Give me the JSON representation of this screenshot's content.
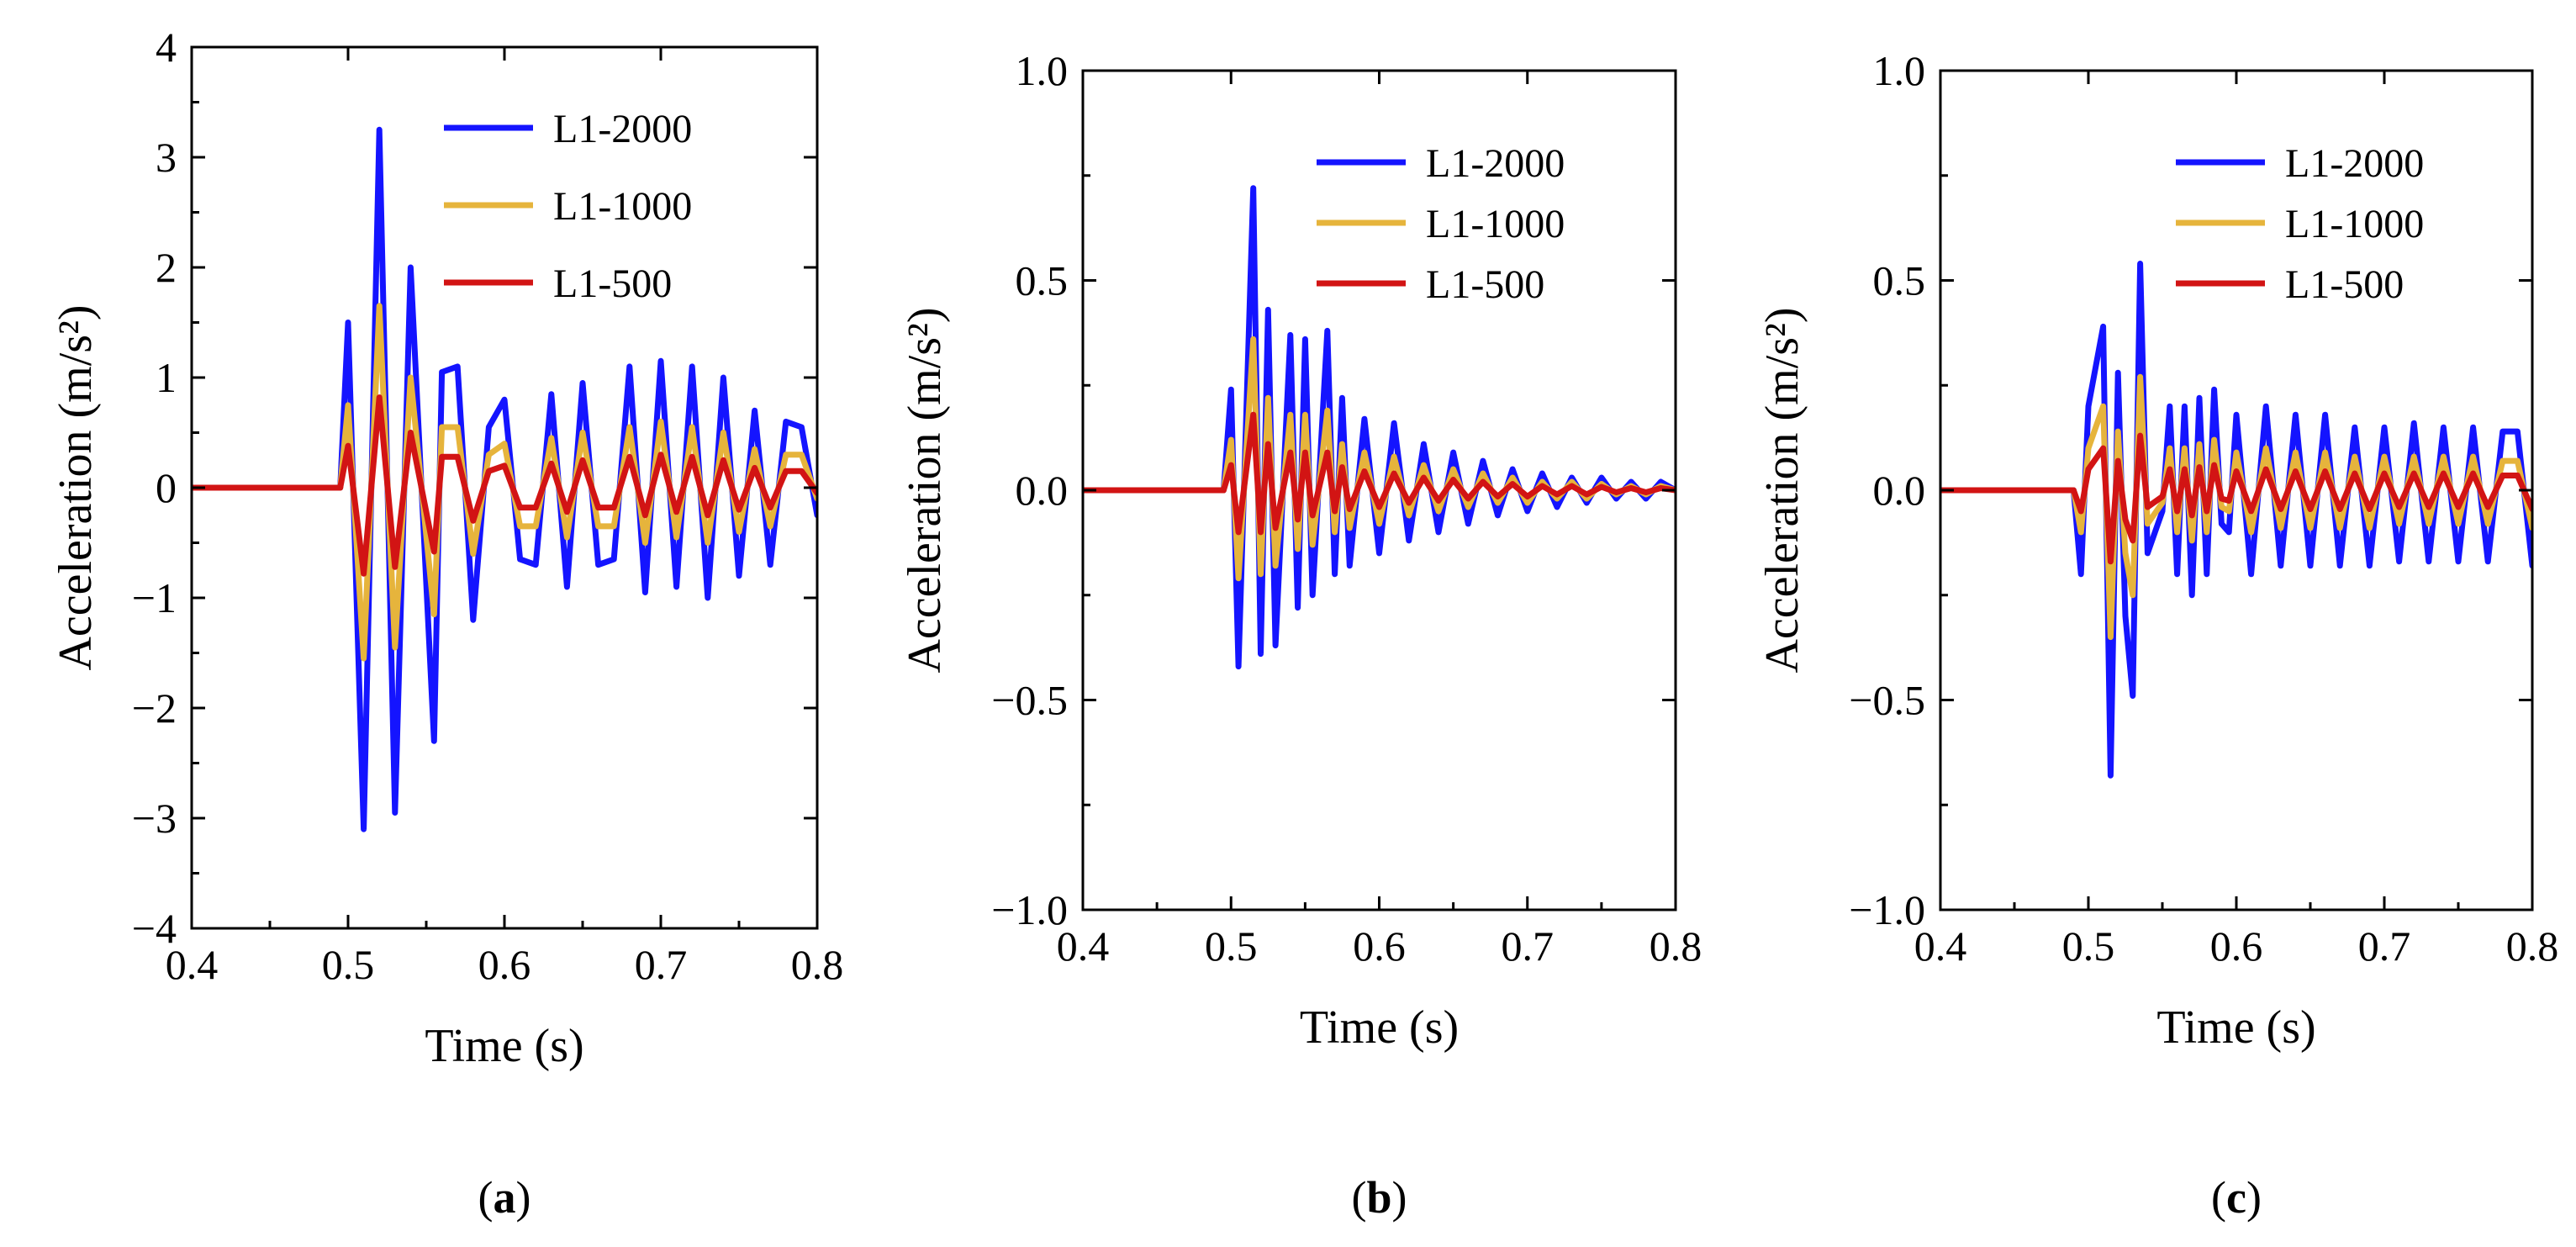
{
  "colors": {
    "L1-2000": "#1414ff",
    "L1-1000": "#e6b43c",
    "L1-500": "#d21414"
  },
  "chart_data": [
    {
      "type": "line",
      "panel_label": "a",
      "xlabel": "Time (s)",
      "ylabel": "Acceleration (m/s²)",
      "xlim": [
        0.4,
        0.8
      ],
      "ylim": [
        -4,
        4
      ],
      "xticks": [
        0.4,
        0.5,
        0.6,
        0.7,
        0.8
      ],
      "xtick_labels": [
        "0.4",
        "0.5",
        "0.6",
        "0.7",
        "0.8"
      ],
      "yticks": [
        -4,
        -3,
        -2,
        -1,
        0,
        1,
        2,
        3,
        4
      ],
      "ytick_labels": [
        "−4",
        "−3",
        "−2",
        "−1",
        "0",
        "1",
        "2",
        "3",
        "4"
      ],
      "legend": [
        "L1-2000",
        "L1-1000",
        "L1-500"
      ],
      "legend_position": "top-right",
      "series": [
        {
          "name": "L1-2000",
          "x": [
            0.4,
            0.495,
            0.5,
            0.51,
            0.52,
            0.53,
            0.54,
            0.555,
            0.56,
            0.57,
            0.58,
            0.59,
            0.6,
            0.61,
            0.62,
            0.63,
            0.64,
            0.65,
            0.66,
            0.67,
            0.68,
            0.69,
            0.7,
            0.71,
            0.72,
            0.73,
            0.74,
            0.75,
            0.76,
            0.77,
            0.78,
            0.79,
            0.8
          ],
          "y": [
            0,
            0,
            1.5,
            -3.1,
            3.25,
            -2.95,
            2.0,
            -2.3,
            1.05,
            1.1,
            -1.2,
            0.55,
            0.8,
            -0.65,
            -0.7,
            0.85,
            -0.9,
            0.95,
            -0.7,
            -0.65,
            1.1,
            -0.95,
            1.15,
            -0.9,
            1.1,
            -1.0,
            1.0,
            -0.8,
            0.7,
            -0.7,
            0.6,
            0.55,
            -0.25
          ]
        },
        {
          "name": "L1-1000",
          "x": [
            0.4,
            0.495,
            0.5,
            0.51,
            0.52,
            0.53,
            0.54,
            0.555,
            0.56,
            0.57,
            0.58,
            0.59,
            0.6,
            0.61,
            0.62,
            0.63,
            0.64,
            0.65,
            0.66,
            0.67,
            0.68,
            0.69,
            0.7,
            0.71,
            0.72,
            0.73,
            0.74,
            0.75,
            0.76,
            0.77,
            0.78,
            0.79,
            0.8
          ],
          "y": [
            0,
            0,
            0.75,
            -1.55,
            1.65,
            -1.45,
            1.0,
            -1.15,
            0.55,
            0.55,
            -0.6,
            0.3,
            0.4,
            -0.35,
            -0.35,
            0.45,
            -0.45,
            0.5,
            -0.35,
            -0.35,
            0.55,
            -0.5,
            0.6,
            -0.45,
            0.55,
            -0.5,
            0.5,
            -0.4,
            0.35,
            -0.35,
            0.3,
            0.3,
            -0.1
          ]
        },
        {
          "name": "L1-500",
          "x": [
            0.4,
            0.495,
            0.5,
            0.51,
            0.52,
            0.53,
            0.54,
            0.555,
            0.56,
            0.57,
            0.58,
            0.59,
            0.6,
            0.61,
            0.62,
            0.63,
            0.64,
            0.65,
            0.66,
            0.67,
            0.68,
            0.69,
            0.7,
            0.71,
            0.72,
            0.73,
            0.74,
            0.75,
            0.76,
            0.77,
            0.78,
            0.79,
            0.8
          ],
          "y": [
            0,
            0,
            0.38,
            -0.78,
            0.82,
            -0.72,
            0.5,
            -0.58,
            0.28,
            0.28,
            -0.3,
            0.15,
            0.2,
            -0.18,
            -0.18,
            0.22,
            -0.22,
            0.25,
            -0.18,
            -0.18,
            0.28,
            -0.25,
            0.3,
            -0.22,
            0.28,
            -0.25,
            0.25,
            -0.2,
            0.18,
            -0.18,
            0.15,
            0.15,
            -0.05
          ]
        }
      ]
    },
    {
      "type": "line",
      "panel_label": "b",
      "xlabel": "Time (s)",
      "ylabel": "Acceleration (m/s²)",
      "xlim": [
        0.4,
        0.8
      ],
      "ylim": [
        -1.0,
        1.0
      ],
      "xticks": [
        0.4,
        0.5,
        0.6,
        0.7,
        0.8
      ],
      "xtick_labels": [
        "0.4",
        "0.5",
        "0.6",
        "0.7",
        "0.8"
      ],
      "yticks": [
        -1.0,
        -0.5,
        0.0,
        0.5,
        1.0
      ],
      "ytick_labels": [
        "−1.0",
        "−0.5",
        "0.0",
        "0.5",
        "1.0"
      ],
      "legend": [
        "L1-2000",
        "L1-1000",
        "L1-500"
      ],
      "legend_position": "top-right",
      "series": [
        {
          "name": "L1-2000",
          "x": [
            0.4,
            0.495,
            0.5,
            0.505,
            0.515,
            0.52,
            0.525,
            0.53,
            0.54,
            0.545,
            0.55,
            0.555,
            0.565,
            0.57,
            0.575,
            0.58,
            0.59,
            0.6,
            0.61,
            0.62,
            0.63,
            0.64,
            0.65,
            0.66,
            0.67,
            0.68,
            0.69,
            0.7,
            0.71,
            0.72,
            0.73,
            0.74,
            0.75,
            0.76,
            0.77,
            0.78,
            0.79,
            0.8
          ],
          "y": [
            0,
            0,
            0.24,
            -0.42,
            0.72,
            -0.39,
            0.43,
            -0.37,
            0.37,
            -0.28,
            0.36,
            -0.25,
            0.38,
            -0.2,
            0.22,
            -0.18,
            0.17,
            -0.15,
            0.16,
            -0.12,
            0.11,
            -0.1,
            0.09,
            -0.08,
            0.07,
            -0.06,
            0.05,
            -0.05,
            0.04,
            -0.04,
            0.03,
            -0.03,
            0.03,
            -0.02,
            0.02,
            -0.02,
            0.02,
            0
          ]
        },
        {
          "name": "L1-1000",
          "x": [
            0.4,
            0.495,
            0.5,
            0.505,
            0.515,
            0.52,
            0.525,
            0.53,
            0.54,
            0.545,
            0.55,
            0.555,
            0.565,
            0.57,
            0.575,
            0.58,
            0.59,
            0.6,
            0.61,
            0.62,
            0.63,
            0.64,
            0.65,
            0.66,
            0.67,
            0.68,
            0.69,
            0.7,
            0.71,
            0.72,
            0.73,
            0.74,
            0.75,
            0.76,
            0.77,
            0.78,
            0.79,
            0.8
          ],
          "y": [
            0,
            0,
            0.12,
            -0.21,
            0.36,
            -0.2,
            0.22,
            -0.18,
            0.18,
            -0.14,
            0.18,
            -0.13,
            0.19,
            -0.1,
            0.11,
            -0.09,
            0.09,
            -0.08,
            0.08,
            -0.06,
            0.06,
            -0.05,
            0.05,
            -0.04,
            0.04,
            -0.03,
            0.03,
            -0.03,
            0.02,
            -0.02,
            0.02,
            -0.02,
            0.015,
            -0.01,
            0.01,
            -0.01,
            0.01,
            0
          ]
        },
        {
          "name": "L1-500",
          "x": [
            0.4,
            0.495,
            0.5,
            0.505,
            0.515,
            0.52,
            0.525,
            0.53,
            0.54,
            0.545,
            0.55,
            0.555,
            0.565,
            0.57,
            0.575,
            0.58,
            0.59,
            0.6,
            0.61,
            0.62,
            0.63,
            0.64,
            0.65,
            0.66,
            0.67,
            0.68,
            0.69,
            0.7,
            0.71,
            0.72,
            0.73,
            0.74,
            0.75,
            0.76,
            0.77,
            0.78,
            0.79,
            0.8
          ],
          "y": [
            0,
            0,
            0.06,
            -0.1,
            0.18,
            -0.1,
            0.11,
            -0.09,
            0.09,
            -0.07,
            0.09,
            -0.06,
            0.09,
            -0.05,
            0.055,
            -0.045,
            0.045,
            -0.04,
            0.04,
            -0.03,
            0.03,
            -0.025,
            0.025,
            -0.02,
            0.02,
            -0.015,
            0.015,
            -0.015,
            0.01,
            -0.01,
            0.01,
            -0.01,
            0.008,
            -0.005,
            0.005,
            -0.005,
            0.005,
            0
          ]
        }
      ]
    },
    {
      "type": "line",
      "panel_label": "c",
      "xlabel": "Time (s)",
      "ylabel": "Acceleration (m/s²)",
      "xlim": [
        0.4,
        0.8
      ],
      "ylim": [
        -1.0,
        1.0
      ],
      "xticks": [
        0.4,
        0.5,
        0.6,
        0.7,
        0.8
      ],
      "xtick_labels": [
        "0.4",
        "0.5",
        "0.6",
        "0.7",
        "0.8"
      ],
      "yticks": [
        -1.0,
        -0.5,
        0.0,
        0.5,
        1.0
      ],
      "ytick_labels": [
        "−1.0",
        "−0.5",
        "0.0",
        "0.5",
        "1.0"
      ],
      "legend": [
        "L1-2000",
        "L1-1000",
        "L1-500"
      ],
      "legend_position": "top-right",
      "series": [
        {
          "name": "L1-2000",
          "x": [
            0.4,
            0.49,
            0.495,
            0.5,
            0.51,
            0.515,
            0.52,
            0.525,
            0.53,
            0.535,
            0.54,
            0.55,
            0.555,
            0.56,
            0.565,
            0.57,
            0.575,
            0.58,
            0.585,
            0.59,
            0.595,
            0.6,
            0.61,
            0.62,
            0.63,
            0.64,
            0.65,
            0.66,
            0.67,
            0.68,
            0.69,
            0.7,
            0.71,
            0.72,
            0.73,
            0.74,
            0.75,
            0.76,
            0.77,
            0.78,
            0.79,
            0.8
          ],
          "y": [
            0,
            0,
            -0.2,
            0.2,
            0.39,
            -0.68,
            0.28,
            -0.3,
            -0.49,
            0.54,
            -0.15,
            -0.05,
            0.2,
            -0.2,
            0.2,
            -0.25,
            0.22,
            -0.2,
            0.24,
            -0.08,
            -0.1,
            0.18,
            -0.2,
            0.2,
            -0.18,
            0.18,
            -0.18,
            0.18,
            -0.18,
            0.15,
            -0.18,
            0.15,
            -0.17,
            0.16,
            -0.17,
            0.15,
            -0.17,
            0.15,
            -0.17,
            0.14,
            0.14,
            -0.18
          ]
        },
        {
          "name": "L1-1000",
          "x": [
            0.4,
            0.49,
            0.495,
            0.5,
            0.51,
            0.515,
            0.52,
            0.525,
            0.53,
            0.535,
            0.54,
            0.55,
            0.555,
            0.56,
            0.565,
            0.57,
            0.575,
            0.58,
            0.585,
            0.59,
            0.595,
            0.6,
            0.61,
            0.62,
            0.63,
            0.64,
            0.65,
            0.66,
            0.67,
            0.68,
            0.69,
            0.7,
            0.71,
            0.72,
            0.73,
            0.74,
            0.75,
            0.76,
            0.77,
            0.78,
            0.79,
            0.8
          ],
          "y": [
            0,
            0,
            -0.1,
            0.1,
            0.2,
            -0.35,
            0.14,
            -0.15,
            -0.25,
            0.27,
            -0.08,
            -0.03,
            0.1,
            -0.1,
            0.1,
            -0.12,
            0.11,
            -0.1,
            0.12,
            -0.04,
            -0.05,
            0.09,
            -0.1,
            0.1,
            -0.09,
            0.09,
            -0.09,
            0.09,
            -0.09,
            0.08,
            -0.09,
            0.08,
            -0.08,
            0.08,
            -0.08,
            0.08,
            -0.08,
            0.08,
            -0.08,
            0.07,
            0.07,
            -0.09
          ]
        },
        {
          "name": "L1-500",
          "x": [
            0.4,
            0.49,
            0.495,
            0.5,
            0.51,
            0.515,
            0.52,
            0.525,
            0.53,
            0.535,
            0.54,
            0.55,
            0.555,
            0.56,
            0.565,
            0.57,
            0.575,
            0.58,
            0.585,
            0.59,
            0.595,
            0.6,
            0.61,
            0.62,
            0.63,
            0.64,
            0.65,
            0.66,
            0.67,
            0.68,
            0.69,
            0.7,
            0.71,
            0.72,
            0.73,
            0.74,
            0.75,
            0.76,
            0.77,
            0.78,
            0.79,
            0.8
          ],
          "y": [
            0,
            0,
            -0.05,
            0.05,
            0.1,
            -0.17,
            0.07,
            -0.07,
            -0.12,
            0.13,
            -0.04,
            -0.015,
            0.05,
            -0.05,
            0.05,
            -0.06,
            0.055,
            -0.05,
            0.06,
            -0.02,
            -0.025,
            0.045,
            -0.05,
            0.05,
            -0.045,
            0.045,
            -0.045,
            0.045,
            -0.045,
            0.04,
            -0.045,
            0.04,
            -0.04,
            0.04,
            -0.04,
            0.04,
            -0.04,
            0.04,
            -0.04,
            0.035,
            0.035,
            -0.045
          ]
        }
      ]
    }
  ]
}
